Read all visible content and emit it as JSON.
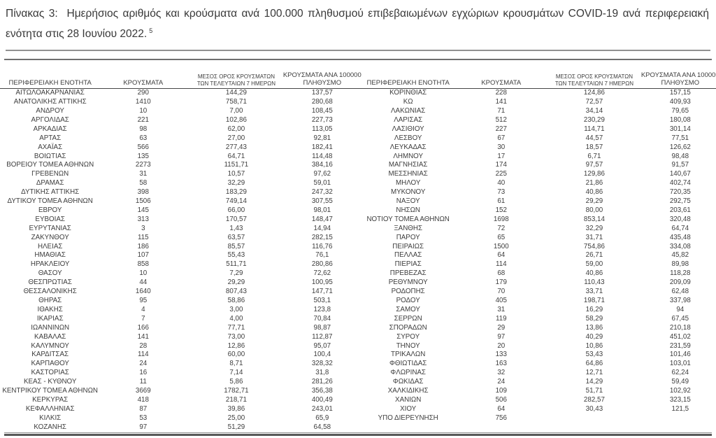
{
  "title": {
    "text": "Πίνακας 3:  Ημερήσιος αριθμός και κρούσματα ανά 100.000 πληθυσμού επιβεβαιωμένων εγχώριων κρουσμάτων COVID-19 ανά περιφερειακή ενότητα στις 28 Ιουνίου 2022.",
    "footnote": "5"
  },
  "table": {
    "headers": {
      "region": "ΠΕΡΙΦΕΡΕΙΑΚΗ ΕΝΟΤΗΤΑ",
      "cases": "ΚΡΟΥΣΜΑΤΑ",
      "avg7_line1": "ΜΕΣΟΣ ΟΡΟΣ ΚΡΟΥΣΜΑΤΩΝ",
      "avg7_line2": "ΤΩΝ ΤΕΛΕΥΤΑΙΩΝ 7 ΗΜΕΡΩΝ",
      "per100k_line1": "ΚΡΟΥΣΜΑΤΑ ΑΝΑ 100000",
      "per100k_line2": "ΠΛΗΘΥΣΜΟ"
    },
    "left_rows": [
      [
        "ΑΙΤΩΛΟΑΚΑΡΝΑΝΙΑΣ",
        "290",
        "144,29",
        "137,57"
      ],
      [
        "ΑΝΑΤΟΛΙΚΗΣ ΑΤΤΙΚΗΣ",
        "1410",
        "758,71",
        "280,68"
      ],
      [
        "ΑΝΔΡΟΥ",
        "10",
        "7,00",
        "108,45"
      ],
      [
        "ΑΡΓΟΛΙΔΑΣ",
        "221",
        "102,86",
        "227,73"
      ],
      [
        "ΑΡΚΑΔΙΑΣ",
        "98",
        "62,00",
        "113,05"
      ],
      [
        "ΑΡΤΑΣ",
        "63",
        "27,00",
        "92,81"
      ],
      [
        "ΑΧΑΪΑΣ",
        "566",
        "277,43",
        "182,41"
      ],
      [
        "ΒΟΙΩΤΙΑΣ",
        "135",
        "64,71",
        "114,48"
      ],
      [
        "ΒΟΡΕΙΟΥ ΤΟΜΕΑ ΑΘΗΝΩΝ",
        "2273",
        "1151,71",
        "384,16"
      ],
      [
        "ΓΡΕΒΕΝΩΝ",
        "31",
        "10,57",
        "97,62"
      ],
      [
        "ΔΡΑΜΑΣ",
        "58",
        "32,29",
        "59,01"
      ],
      [
        "ΔΥΤΙΚΗΣ ΑΤΤΙΚΗΣ",
        "398",
        "183,29",
        "247,32"
      ],
      [
        "ΔΥΤΙΚΟΥ ΤΟΜΕΑ ΑΘΗΝΩΝ",
        "1506",
        "749,14",
        "307,55"
      ],
      [
        "ΕΒΡΟΥ",
        "145",
        "66,00",
        "98,01"
      ],
      [
        "ΕΥΒΟΙΑΣ",
        "313",
        "170,57",
        "148,47"
      ],
      [
        "ΕΥΡΥΤΑΝΙΑΣ",
        "3",
        "1,43",
        "14,94"
      ],
      [
        "ΖΑΚΥΝΘΟΥ",
        "115",
        "63,57",
        "282,15"
      ],
      [
        "ΗΛΕΙΑΣ",
        "186",
        "85,57",
        "116,76"
      ],
      [
        "ΗΜΑΘΙΑΣ",
        "107",
        "55,43",
        "76,1"
      ],
      [
        "ΗΡΑΚΛΕΙΟΥ",
        "858",
        "511,71",
        "280,86"
      ],
      [
        "ΘΑΣΟΥ",
        "10",
        "7,29",
        "72,62"
      ],
      [
        "ΘΕΣΠΡΩΤΙΑΣ",
        "44",
        "29,29",
        "100,95"
      ],
      [
        "ΘΕΣΣΑΛΟΝΙΚΗΣ",
        "1640",
        "807,43",
        "147,71"
      ],
      [
        "ΘΗΡΑΣ",
        "95",
        "58,86",
        "503,1"
      ],
      [
        "ΙΘΑΚΗΣ",
        "4",
        "3,00",
        "123,8"
      ],
      [
        "ΙΚΑΡΙΑΣ",
        "7",
        "4,00",
        "70,84"
      ],
      [
        "ΙΩΑΝΝΙΝΩΝ",
        "166",
        "77,71",
        "98,87"
      ],
      [
        "ΚΑΒΑΛΑΣ",
        "141",
        "73,00",
        "112,87"
      ],
      [
        "ΚΑΛΥΜΝΟΥ",
        "28",
        "12,86",
        "95,07"
      ],
      [
        "ΚΑΡΔΙΤΣΑΣ",
        "114",
        "60,00",
        "100,4"
      ],
      [
        "ΚΑΡΠΑΘΟΥ",
        "24",
        "8,71",
        "328,32"
      ],
      [
        "ΚΑΣΤΟΡΙΑΣ",
        "16",
        "7,14",
        "31,8"
      ],
      [
        "ΚΕΑΣ - ΚΥΘΝΟΥ",
        "11",
        "5,86",
        "281,26"
      ],
      [
        "ΚΕΝΤΡΙΚΟΥ ΤΟΜΕΑ ΑΘΗΝΩΝ",
        "3669",
        "1782,71",
        "356,38"
      ],
      [
        "ΚΕΡΚΥΡΑΣ",
        "418",
        "218,71",
        "400,49"
      ],
      [
        "ΚΕΦΑΛΛΗΝΙΑΣ",
        "87",
        "39,86",
        "243,01"
      ],
      [
        "ΚΙΛΚΙΣ",
        "53",
        "25,00",
        "65,9"
      ],
      [
        "ΚΟΖΑΝΗΣ",
        "97",
        "51,29",
        "64,58"
      ]
    ],
    "right_rows": [
      [
        "ΚΟΡΙΝΘΙΑΣ",
        "228",
        "124,86",
        "157,15"
      ],
      [
        "ΚΩ",
        "141",
        "72,57",
        "409,93"
      ],
      [
        "ΛΑΚΩΝΙΑΣ",
        "71",
        "34,14",
        "79,65"
      ],
      [
        "ΛΑΡΙΣΑΣ",
        "512",
        "230,29",
        "180,08"
      ],
      [
        "ΛΑΣΙΘΙΟΥ",
        "227",
        "114,71",
        "301,14"
      ],
      [
        "ΛΕΣΒΟΥ",
        "67",
        "44,57",
        "77,51"
      ],
      [
        "ΛΕΥΚΑΔΑΣ",
        "30",
        "18,57",
        "126,62"
      ],
      [
        "ΛΗΜΝΟΥ",
        "17",
        "6,71",
        "98,48"
      ],
      [
        "ΜΑΓΝΗΣΙΑΣ",
        "174",
        "97,57",
        "91,57"
      ],
      [
        "ΜΕΣΣΗΝΙΑΣ",
        "225",
        "129,86",
        "140,67"
      ],
      [
        "ΜΗΛΟΥ",
        "40",
        "21,86",
        "402,74"
      ],
      [
        "ΜΥΚΟΝΟΥ",
        "73",
        "40,86",
        "720,35"
      ],
      [
        "ΝΑΞΟΥ",
        "61",
        "29,29",
        "292,75"
      ],
      [
        "ΝΗΣΩΝ",
        "152",
        "80,00",
        "203,61"
      ],
      [
        "ΝΟΤΙΟΥ ΤΟΜΕΑ ΑΘΗΝΩΝ",
        "1698",
        "853,14",
        "320,48"
      ],
      [
        "ΞΑΝΘΗΣ",
        "72",
        "32,29",
        "64,74"
      ],
      [
        "ΠΑΡΟΥ",
        "65",
        "31,71",
        "435,48"
      ],
      [
        "ΠΕΙΡΑΙΩΣ",
        "1500",
        "754,86",
        "334,08"
      ],
      [
        "ΠΕΛΛΑΣ",
        "64",
        "26,71",
        "45,82"
      ],
      [
        "ΠΙΕΡΙΑΣ",
        "114",
        "59,00",
        "89,98"
      ],
      [
        "ΠΡΕΒΕΖΑΣ",
        "68",
        "40,86",
        "118,28"
      ],
      [
        "ΡΕΘΥΜΝΟΥ",
        "179",
        "110,43",
        "209,09"
      ],
      [
        "ΡΟΔΟΠΗΣ",
        "70",
        "33,71",
        "62,48"
      ],
      [
        "ΡΟΔΟΥ",
        "405",
        "198,71",
        "337,98"
      ],
      [
        "ΣΑΜΟΥ",
        "31",
        "16,29",
        "94"
      ],
      [
        "ΣΕΡΡΩΝ",
        "119",
        "58,29",
        "67,45"
      ],
      [
        "ΣΠΟΡΑΔΩΝ",
        "29",
        "13,86",
        "210,18"
      ],
      [
        "ΣΥΡΟΥ",
        "97",
        "40,29",
        "451,02"
      ],
      [
        "ΤΗΝΟΥ",
        "20",
        "10,86",
        "231,59"
      ],
      [
        "ΤΡΙΚΑΛΩΝ",
        "133",
        "53,43",
        "101,46"
      ],
      [
        "ΦΘΙΩΤΙΔΑΣ",
        "163",
        "64,86",
        "103,01"
      ],
      [
        "ΦΛΩΡΙΝΑΣ",
        "32",
        "12,71",
        "62,24"
      ],
      [
        "ΦΩΚΙΔΑΣ",
        "24",
        "14,29",
        "59,49"
      ],
      [
        "ΧΑΛΚΙΔΙΚΗΣ",
        "109",
        "51,71",
        "102,92"
      ],
      [
        "ΧΑΝΙΩΝ",
        "506",
        "282,57",
        "323,15"
      ],
      [
        "ΧΙΟΥ",
        "64",
        "30,43",
        "121,5"
      ],
      [
        "ΥΠΟ ΔΙΕΡΕΥΝΗΣΗ",
        "756",
        "",
        ""
      ]
    ]
  }
}
